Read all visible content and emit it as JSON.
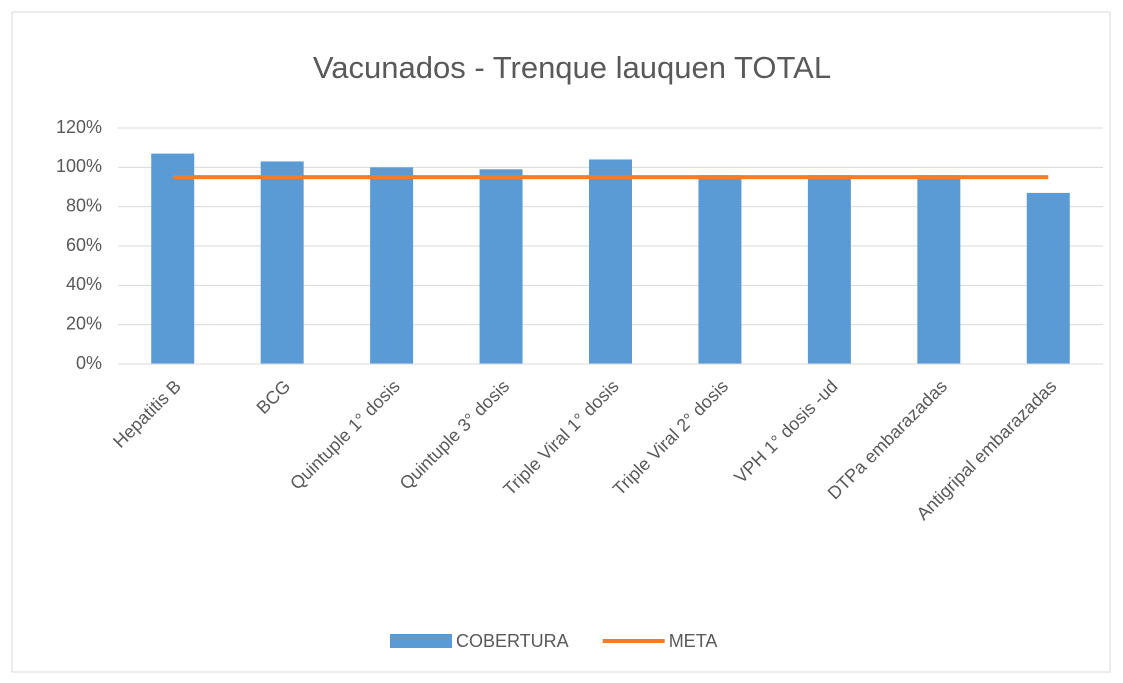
{
  "chart_data": {
    "type": "bar",
    "title": "Vacunados - Trenque lauquen TOTAL",
    "categories": [
      "Hepatitis B",
      "BCG",
      "Quintuple 1° dosis",
      "Quintuple 3° dosis",
      "Triple Viral 1° dosis",
      "Triple Viral 2° dosis",
      "VPH 1° dosis -ud",
      "DTPa embarazadas",
      "Antigripal embarazadas"
    ],
    "series": [
      {
        "name": "COBERTURA",
        "type": "bar",
        "color": "#5b9bd5",
        "values": [
          107,
          103,
          100,
          99,
          104,
          96,
          96,
          96,
          87
        ]
      },
      {
        "name": "META",
        "type": "line",
        "color": "#ed7d31",
        "values": [
          95,
          95,
          95,
          95,
          95,
          95,
          95,
          95,
          95
        ]
      }
    ],
    "ylim": [
      0,
      120
    ],
    "yticks": [
      {
        "value": 0,
        "label": "0%"
      },
      {
        "value": 20,
        "label": "20%"
      },
      {
        "value": 40,
        "label": "40%"
      },
      {
        "value": 60,
        "label": "60%"
      },
      {
        "value": 80,
        "label": "80%"
      },
      {
        "value": 100,
        "label": "100%"
      },
      {
        "value": 120,
        "label": "120%"
      }
    ],
    "grid": true,
    "legend": "bottom"
  }
}
